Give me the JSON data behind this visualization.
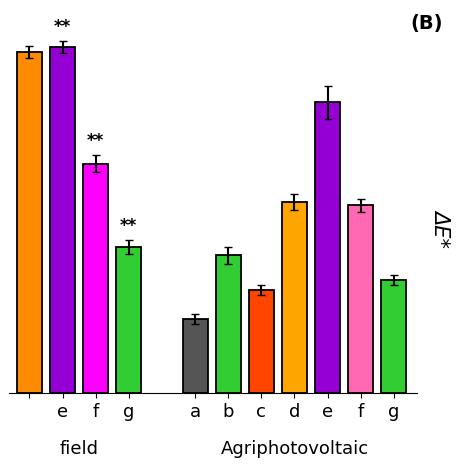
{
  "field_bars": {
    "x_positions": [
      0.5,
      1.5,
      2.5,
      3.5
    ],
    "values": [
      20.5,
      20.8,
      13.8,
      8.8
    ],
    "errors": [
      0.35,
      0.35,
      0.5,
      0.4
    ],
    "colors": [
      "#FF8C00",
      "#9400D3",
      "#FF00FF",
      "#32CD32"
    ],
    "tick_labels": [
      "",
      "e",
      "f",
      "g"
    ],
    "annotations": [
      null,
      "**",
      "**",
      "**"
    ]
  },
  "agri_bars": {
    "x_positions": [
      5.5,
      6.5,
      7.5,
      8.5,
      9.5,
      10.5,
      11.5
    ],
    "values": [
      4.5,
      8.3,
      6.2,
      11.5,
      17.5,
      11.3,
      6.8
    ],
    "errors": [
      0.3,
      0.5,
      0.3,
      0.5,
      1.0,
      0.4,
      0.3
    ],
    "colors": [
      "#555555",
      "#32CD32",
      "#FF4500",
      "#FFA500",
      "#9400D3",
      "#FF69B4",
      "#32CD32"
    ],
    "tick_labels": [
      "a",
      "b",
      "c",
      "d",
      "e",
      "f",
      "g"
    ]
  },
  "bar_width": 0.75,
  "xlim": [
    -0.3,
    12.2
  ],
  "ylim": [
    0,
    22.5
  ],
  "ylabel": "ΔE*",
  "xlabel_field": "field",
  "xlabel_agri": "Agriphotovoltaic",
  "panel_label": "(B)",
  "annotation_fontsize": 12,
  "tick_fontsize": 13,
  "group_label_fontsize": 13,
  "panel_fontsize": 14,
  "ylabel_fontsize": 15,
  "background_color": "#ffffff"
}
